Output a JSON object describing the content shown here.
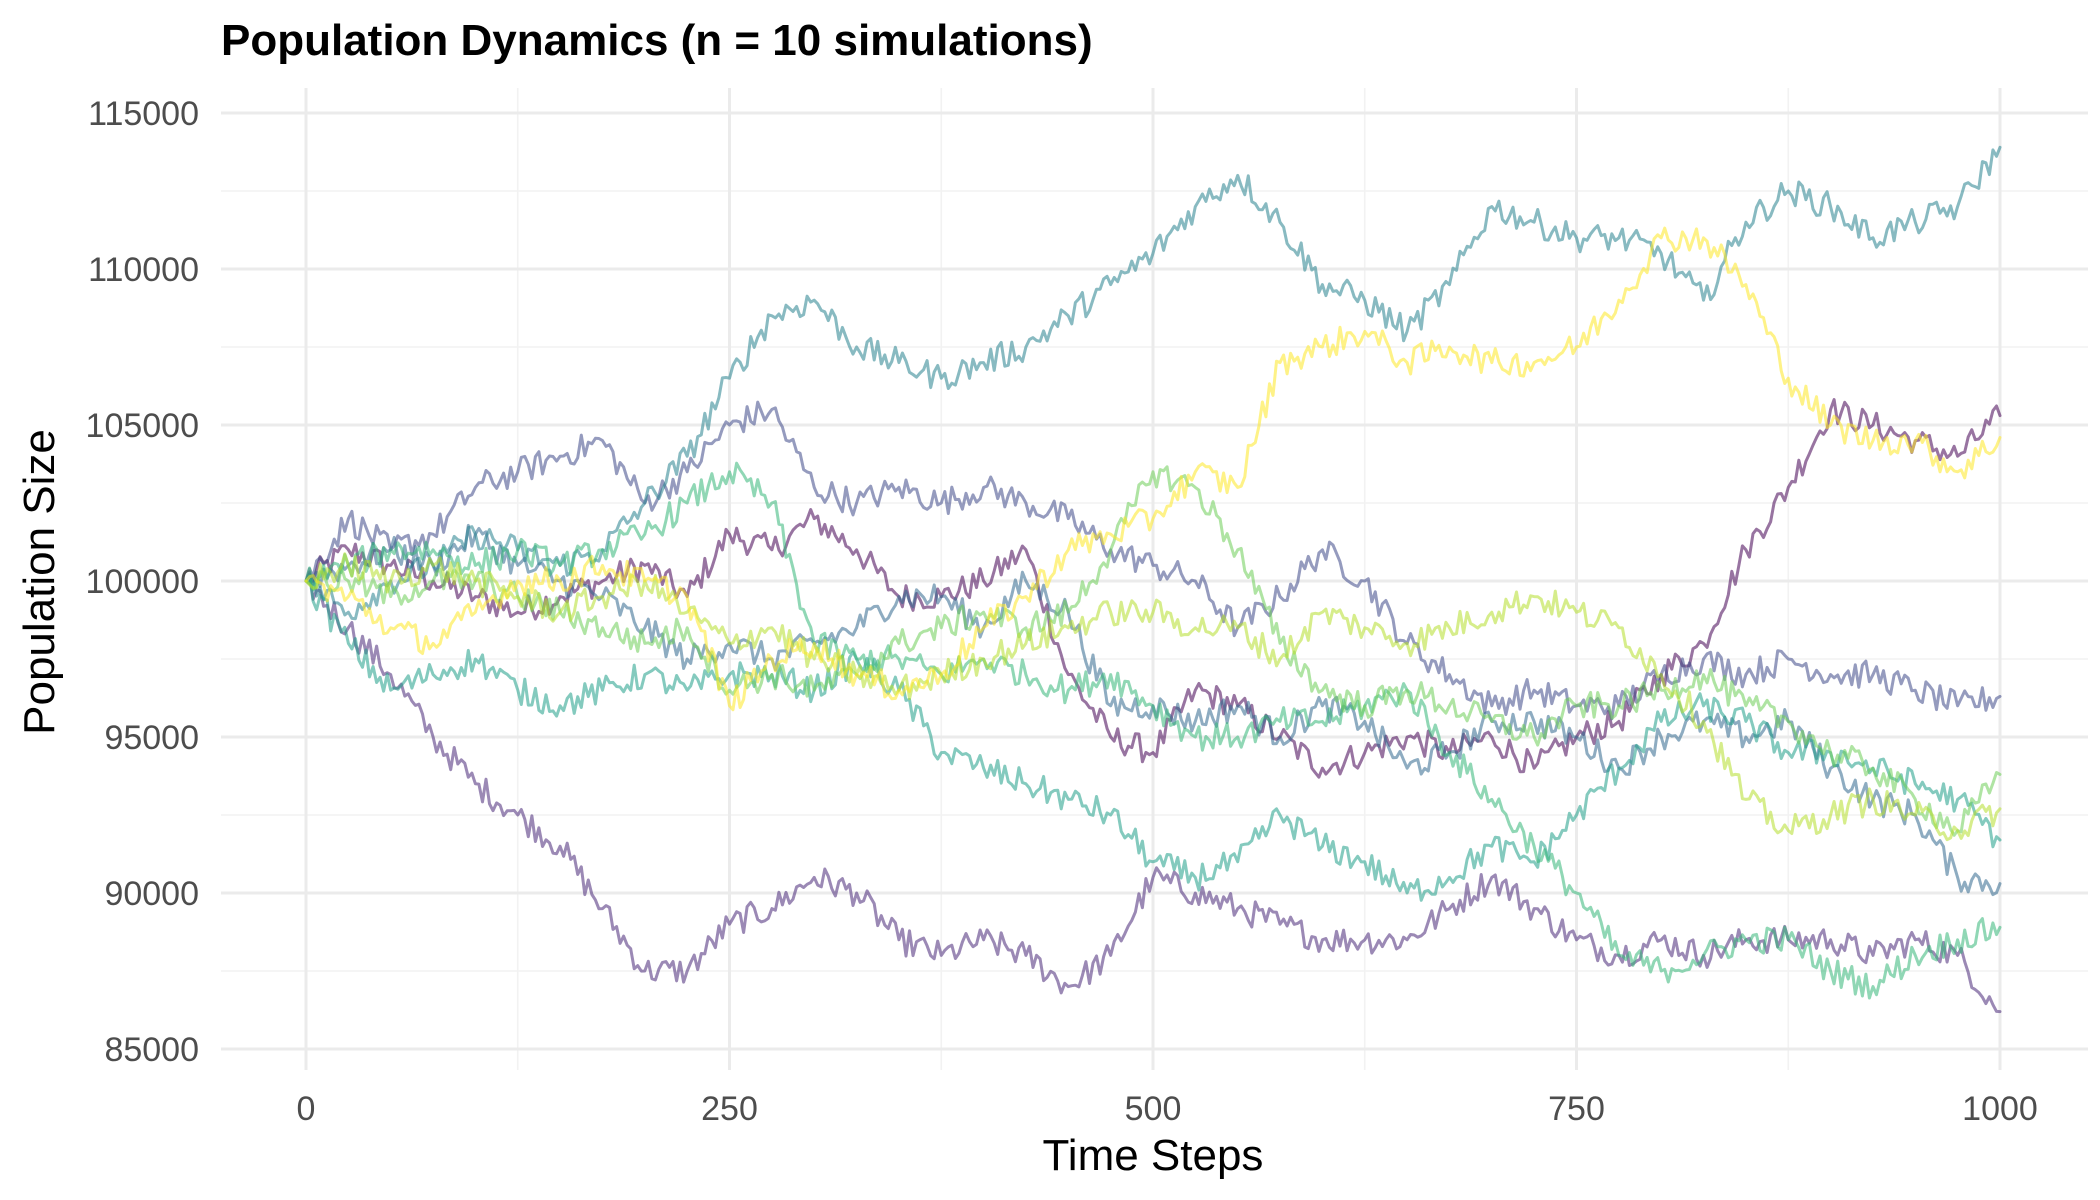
{
  "chart_data": {
    "type": "line",
    "title": "Population Dynamics (n = 10 simulations)",
    "xlabel": "Time Steps",
    "ylabel": "Population Size",
    "xlim": [
      0,
      1000
    ],
    "ylim": [
      85000,
      115000
    ],
    "x_ticks": [
      0,
      250,
      500,
      750,
      1000
    ],
    "y_ticks": [
      85000,
      90000,
      95000,
      100000,
      105000,
      110000,
      115000
    ],
    "grid": true,
    "legend": "none",
    "x": [
      0,
      25,
      50,
      75,
      100,
      125,
      150,
      175,
      200,
      225,
      250,
      275,
      300,
      325,
      350,
      375,
      400,
      425,
      450,
      475,
      500,
      525,
      550,
      575,
      600,
      625,
      650,
      675,
      700,
      725,
      750,
      775,
      800,
      825,
      850,
      875,
      900,
      925,
      950,
      975,
      1000
    ],
    "series": [
      {
        "color": "#440154",
        "values": [
          100000,
          101000,
          100500,
          100000,
          99500,
          99000,
          99500,
          100000,
          100500,
          99500,
          101500,
          101000,
          102000,
          101000,
          99500,
          99500,
          100000,
          101000,
          97000,
          95000,
          94500,
          96500,
          96000,
          95000,
          94000,
          94500,
          95000,
          94500,
          95000,
          94000,
          95000,
          95500,
          97000,
          98000,
          101000,
          103000,
          105500,
          105000,
          104500,
          104000,
          105300
        ]
      },
      {
        "color": "#482878",
        "values": [
          100000,
          98500,
          97000,
          95000,
          93500,
          92500,
          91500,
          89500,
          87500,
          87500,
          89000,
          89500,
          90500,
          90000,
          88500,
          88000,
          88500,
          88000,
          87000,
          88000,
          90500,
          90000,
          89500,
          89000,
          88500,
          88500,
          88500,
          89500,
          90500,
          89500,
          88500,
          88000,
          88500,
          88000,
          88500,
          88500,
          88500,
          88000,
          88500,
          88000,
          86200
        ]
      },
      {
        "color": "#3e4989",
        "values": [
          100000,
          102000,
          101000,
          101500,
          103000,
          103500,
          104000,
          104500,
          102500,
          103500,
          105000,
          105500,
          103000,
          102500,
          103000,
          102500,
          103000,
          102500,
          102000,
          101000,
          100500,
          100000,
          98500,
          99500,
          101000,
          100000,
          98000,
          97000,
          96000,
          96500,
          96000,
          96000,
          97000,
          97500,
          97000,
          97500,
          97000,
          97000,
          96500,
          96000,
          96300
        ]
      },
      {
        "color": "#31688e",
        "values": [
          100000,
          100500,
          101000,
          100500,
          101500,
          100500,
          100000,
          99500,
          98500,
          97500,
          98000,
          97500,
          98000,
          98500,
          99500,
          99500,
          98500,
          100000,
          99000,
          96000,
          96000,
          95500,
          96000,
          95000,
          96000,
          95500,
          94000,
          94500,
          95500,
          95500,
          95000,
          94000,
          95000,
          95500,
          95000,
          95500,
          94000,
          93000,
          92500,
          90500,
          90300
        ]
      },
      {
        "color": "#26828e",
        "values": [
          100000,
          99000,
          100000,
          100500,
          101500,
          101000,
          100500,
          101000,
          102500,
          104000,
          106500,
          108500,
          109000,
          107500,
          107000,
          106500,
          107000,
          107500,
          108500,
          109500,
          110500,
          112000,
          113000,
          111500,
          109500,
          109000,
          108000,
          109500,
          112000,
          111500,
          111000,
          111000,
          110500,
          109000,
          111500,
          112500,
          112000,
          111000,
          111500,
          112000,
          113900
        ]
      },
      {
        "color": "#1f9e89",
        "values": [
          100000,
          98000,
          96500,
          97000,
          97500,
          96500,
          96000,
          96500,
          97000,
          96500,
          97000,
          97000,
          96500,
          97500,
          96500,
          94500,
          94000,
          93500,
          93000,
          92500,
          91000,
          90500,
          91000,
          92500,
          91500,
          91000,
          90000,
          90500,
          91500,
          91000,
          92500,
          94000,
          95500,
          96000,
          95500,
          94500,
          94500,
          94000,
          93500,
          93000,
          91700
        ]
      },
      {
        "color": "#35b779",
        "values": [
          100000,
          100500,
          101000,
          101000,
          100500,
          101000,
          100500,
          101000,
          101500,
          102500,
          103500,
          102500,
          98000,
          97500,
          97500,
          97000,
          97500,
          97000,
          96500,
          97000,
          96000,
          95000,
          95000,
          95500,
          95500,
          96000,
          96500,
          94500,
          93000,
          91500,
          90000,
          88000,
          87500,
          88000,
          88500,
          88500,
          87500,
          87000,
          88000,
          88500,
          88900
        ]
      },
      {
        "color": "#6ece58",
        "values": [
          100000,
          100000,
          99500,
          100000,
          100000,
          99500,
          99000,
          98500,
          98000,
          98500,
          96500,
          97000,
          96500,
          97000,
          98000,
          98500,
          99000,
          98500,
          99000,
          101000,
          103500,
          103000,
          101000,
          98000,
          96500,
          96000,
          96500,
          96000,
          95500,
          95000,
          96000,
          96000,
          96500,
          97000,
          96000,
          95500,
          94500,
          94000,
          93000,
          92000,
          93800
        ]
      },
      {
        "color": "#b5de2b",
        "values": [
          100000,
          100500,
          100000,
          100500,
          100000,
          99500,
          99000,
          99500,
          100000,
          99000,
          98000,
          98500,
          97500,
          97000,
          96500,
          97000,
          97500,
          98000,
          98500,
          99000,
          99000,
          98500,
          98500,
          97500,
          99000,
          98500,
          98000,
          98500,
          99000,
          99500,
          99000,
          98500,
          97000,
          95500,
          93000,
          92000,
          92500,
          93000,
          92500,
          92000,
          92700
        ]
      },
      {
        "color": "#fde725",
        "values": [
          100000,
          99500,
          98500,
          98000,
          99000,
          100000,
          100000,
          100500,
          100000,
          99500,
          96000,
          97500,
          98000,
          97000,
          96500,
          97000,
          98500,
          99500,
          101000,
          101500,
          102000,
          103500,
          103000,
          107000,
          107500,
          108000,
          107000,
          107500,
          107000,
          107000,
          107500,
          109000,
          111000,
          111000,
          109500,
          106500,
          105000,
          104500,
          104500,
          103500,
          104600
        ]
      }
    ]
  }
}
